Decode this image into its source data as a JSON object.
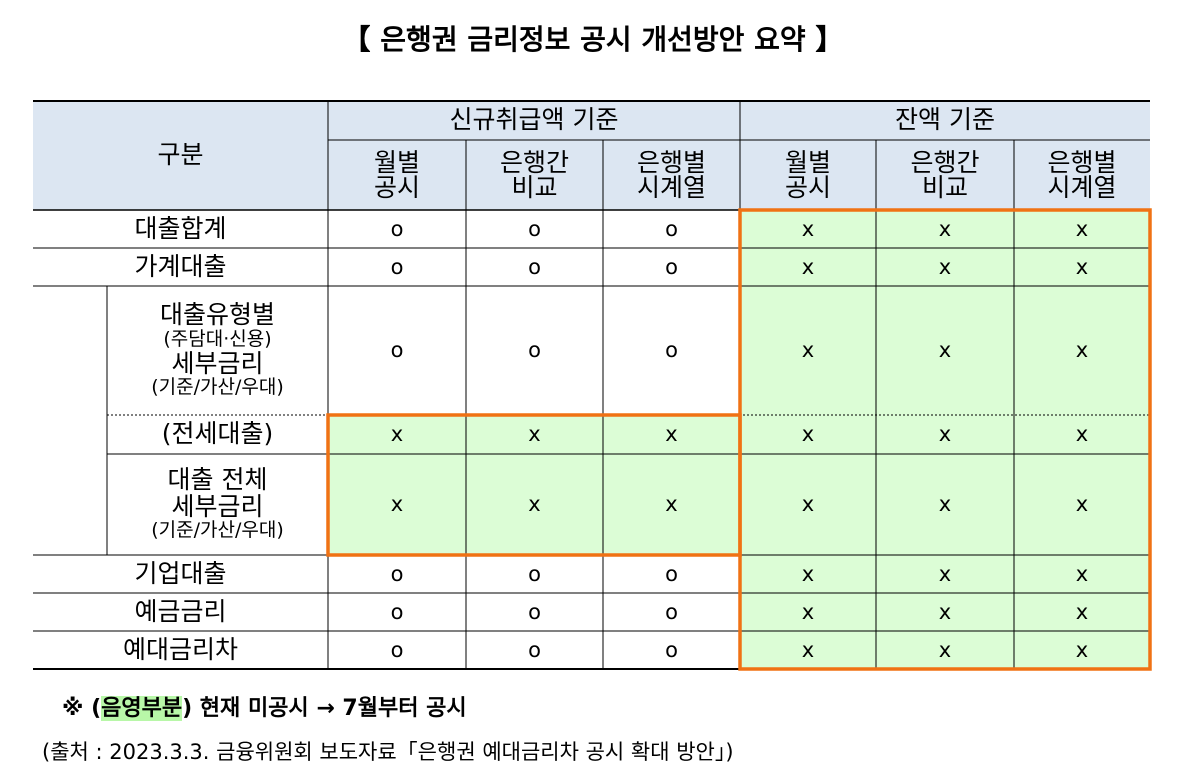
{
  "title": "【 은행권 금리정보 공시 개선방안 요약 】",
  "table": {
    "corner": "구분",
    "groups": [
      "신규취급액 기준",
      "잔액 기준"
    ],
    "columns": [
      [
        "월별",
        "공시"
      ],
      [
        "은행간",
        "비교"
      ],
      [
        "은행별",
        "시계열"
      ],
      [
        "월별",
        "공시"
      ],
      [
        "은행간",
        "비교"
      ],
      [
        "은행별",
        "시계열"
      ]
    ],
    "rows": [
      {
        "label": [
          "대출합계"
        ],
        "cells": [
          "o",
          "o",
          "o",
          "x",
          "x",
          "x"
        ]
      },
      {
        "label": [
          "가계대출"
        ],
        "cells": [
          "o",
          "o",
          "o",
          "x",
          "x",
          "x"
        ]
      },
      {
        "label": [
          "대출유형별",
          "(주담대·신용)",
          "세부금리",
          "(기준/가산/우대)"
        ],
        "cells": [
          "o",
          "o",
          "o",
          "x",
          "x",
          "x"
        ]
      },
      {
        "label": [
          "(전세대출)"
        ],
        "cells": [
          "x",
          "x",
          "x",
          "x",
          "x",
          "x"
        ]
      },
      {
        "label": [
          "대출 전체",
          "세부금리",
          "(기준/가산/우대)"
        ],
        "cells": [
          "x",
          "x",
          "x",
          "x",
          "x",
          "x"
        ]
      },
      {
        "label": [
          "기업대출"
        ],
        "cells": [
          "o",
          "o",
          "o",
          "x",
          "x",
          "x"
        ]
      },
      {
        "label": [
          "예금금리"
        ],
        "cells": [
          "o",
          "o",
          "o",
          "x",
          "x",
          "x"
        ]
      },
      {
        "label": [
          "예대금리차"
        ],
        "cells": [
          "o",
          "o",
          "o",
          "x",
          "x",
          "x"
        ]
      }
    ]
  },
  "note": {
    "mark": "※",
    "open": "(",
    "highlight": "음영부분",
    "rest": ") 현재 미공시 → 7월부터 공시"
  },
  "source": "(출처 : 2023.3.3. 금융위원회 보도자료「은행권 예대금리차 공시 확대 방안」)"
}
